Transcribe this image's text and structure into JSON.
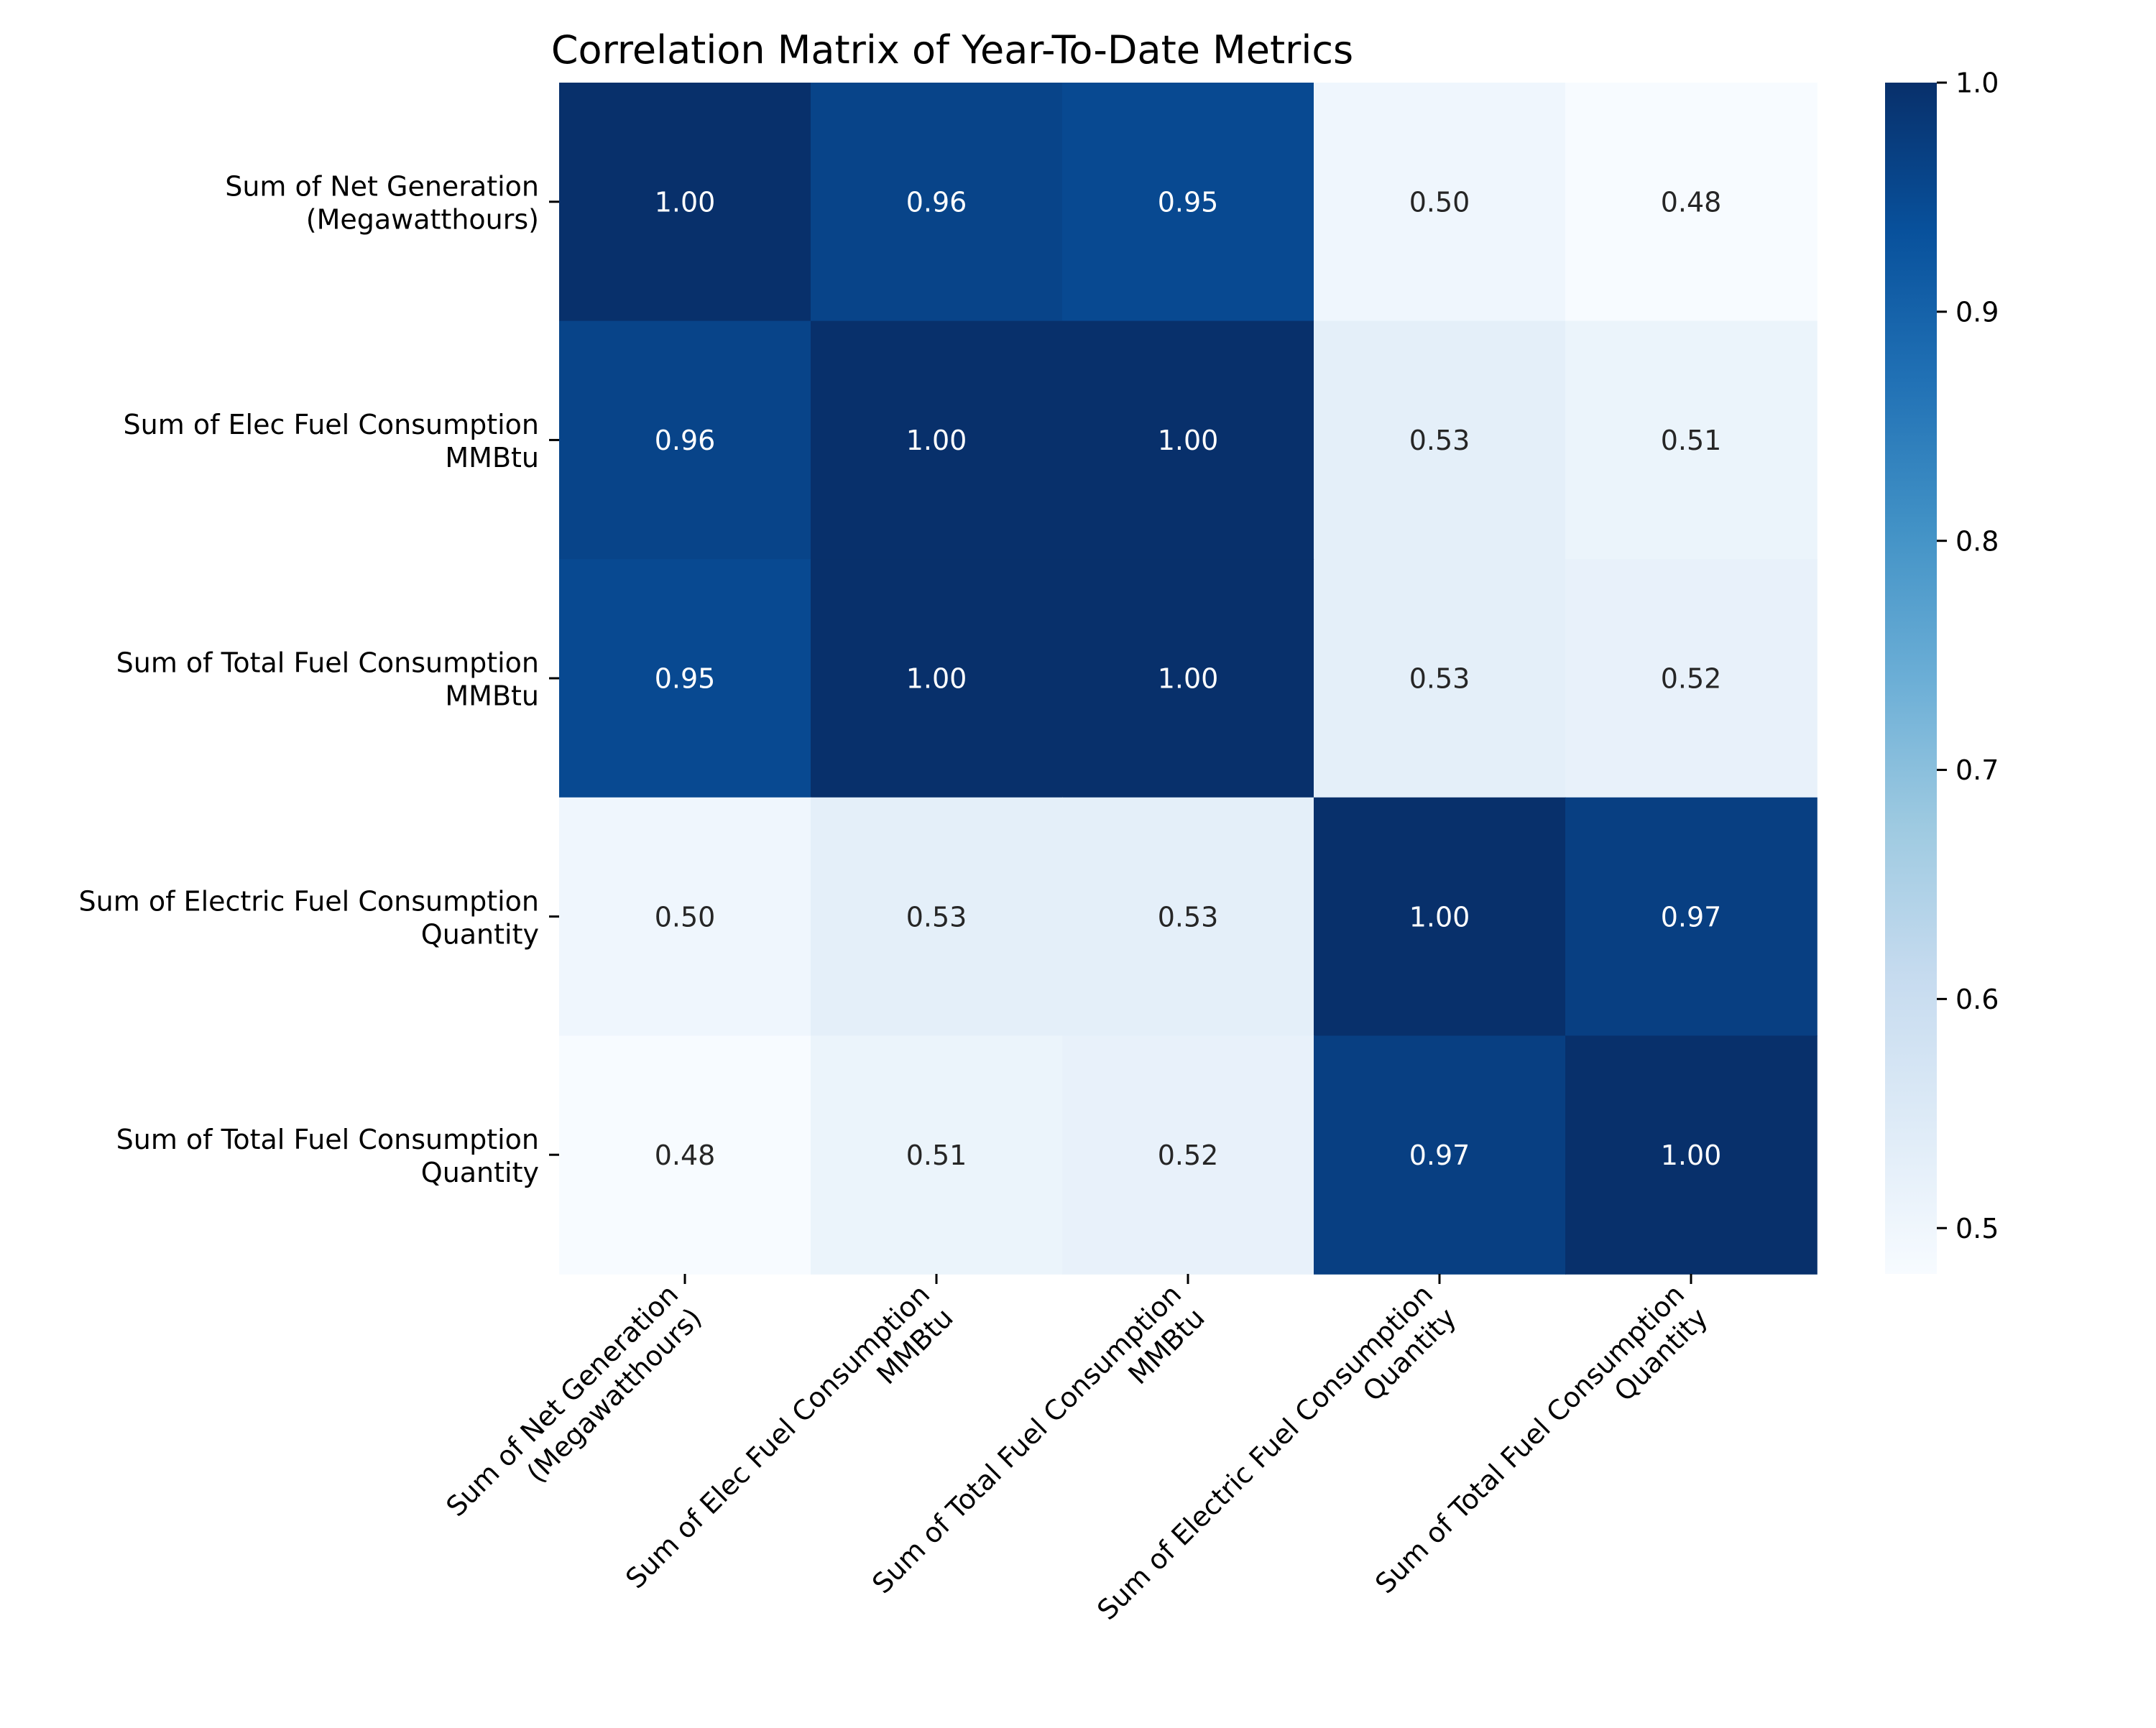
{
  "chart_data": {
    "type": "heatmap",
    "title": "Correlation Matrix of Year-To-Date Metrics",
    "labels": [
      [
        "Sum of Net Generation",
        "(Megawatthours)"
      ],
      [
        "Sum of Elec Fuel Consumption",
        "MMBtu"
      ],
      [
        "Sum of Total Fuel Consumption",
        "MMBtu"
      ],
      [
        "Sum of Electric Fuel Consumption",
        "Quantity"
      ],
      [
        "Sum of Total Fuel Consumption",
        "Quantity"
      ]
    ],
    "values": [
      [
        1.0,
        0.96,
        0.95,
        0.5,
        0.48
      ],
      [
        0.96,
        1.0,
        1.0,
        0.53,
        0.51
      ],
      [
        0.95,
        1.0,
        1.0,
        0.53,
        0.52
      ],
      [
        0.5,
        0.53,
        0.53,
        1.0,
        0.97
      ],
      [
        0.48,
        0.51,
        0.52,
        0.97,
        1.0
      ]
    ],
    "colorbar": {
      "colormap": "Blues",
      "range": [
        0.48,
        1.0
      ],
      "ticks": [
        "0.5",
        "0.6",
        "0.7",
        "0.8",
        "0.9",
        "1.0"
      ]
    },
    "annotation_format": "0.00"
  }
}
